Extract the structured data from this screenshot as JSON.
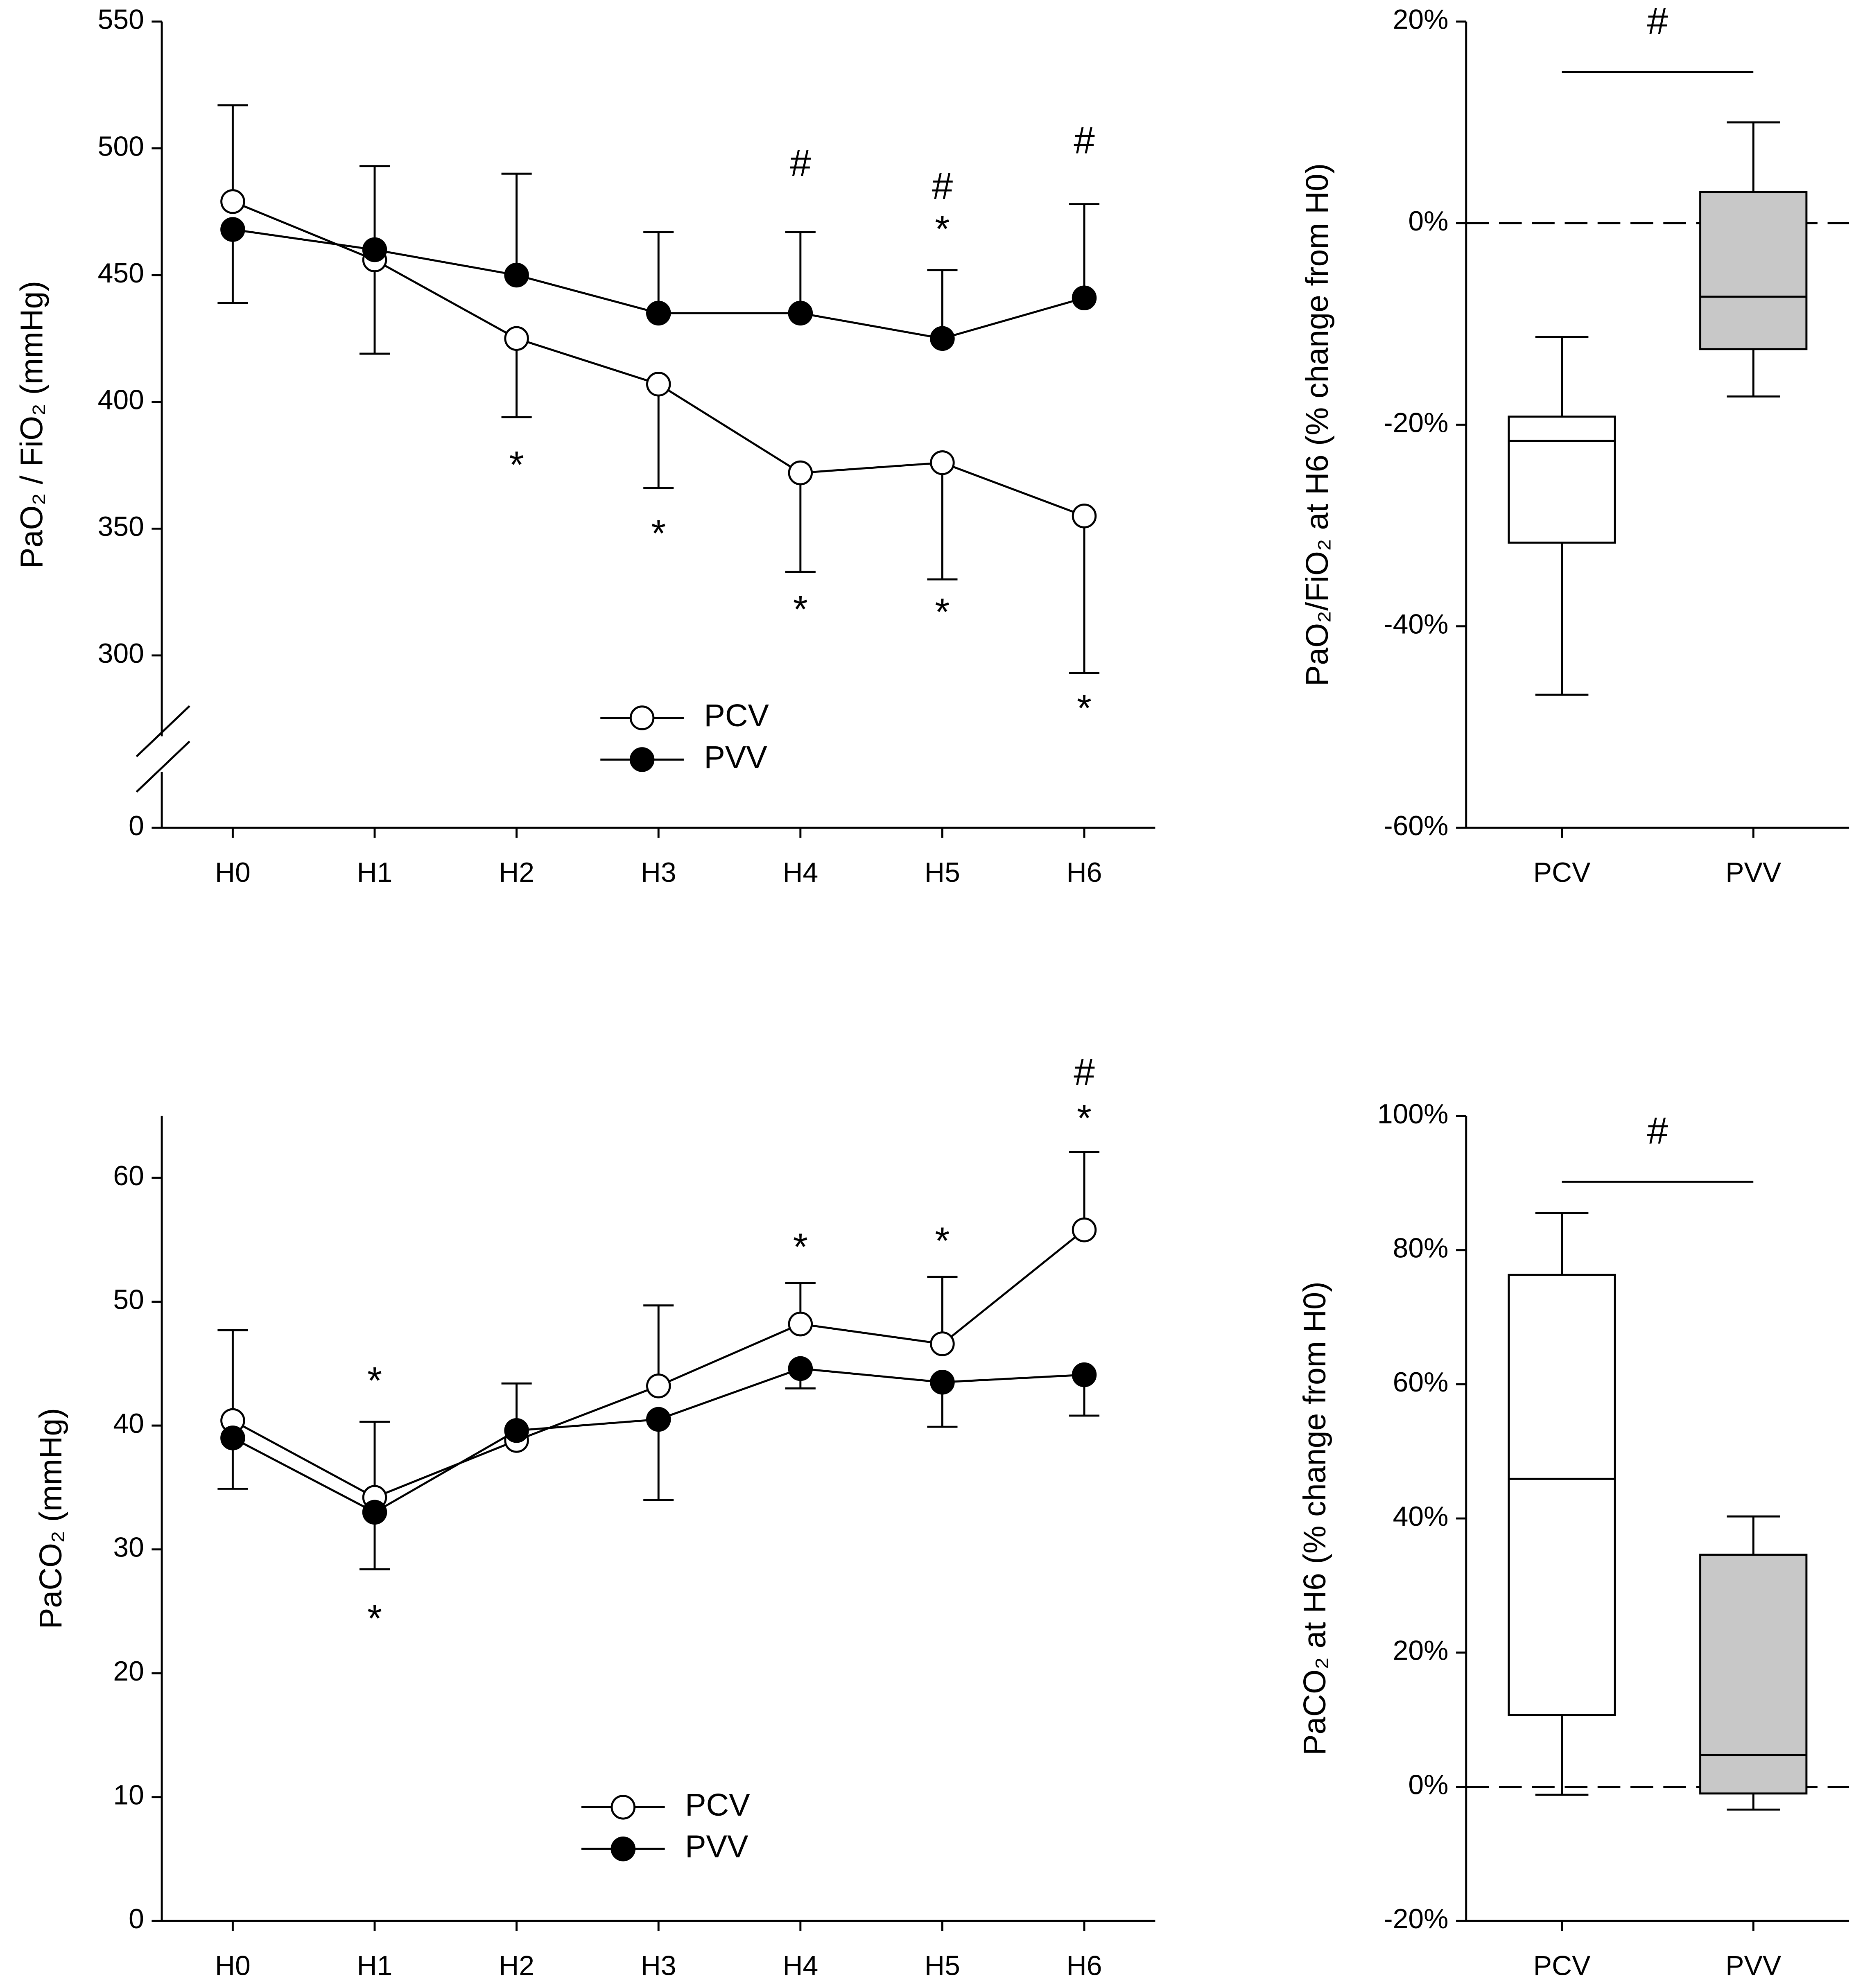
{
  "chart_data": [
    {
      "type": "line",
      "ylabel": "PaO₂ / FiO₂ (mmHg)",
      "categories": [
        "H0",
        "H1",
        "H2",
        "H3",
        "H4",
        "H5",
        "H6"
      ],
      "ylim": [
        232,
        550
      ],
      "yticks": [
        0,
        300,
        350,
        400,
        450,
        500,
        550
      ],
      "axis_break": true,
      "series": [
        {
          "name": "PCV",
          "color": "#000000",
          "fill": "#ffffff",
          "values": [
            479,
            456,
            425,
            407,
            372,
            376,
            355
          ],
          "errors": [
            38,
            37,
            31,
            41,
            39,
            46,
            62
          ],
          "error_side": [
            "up",
            "down",
            "down",
            "down",
            "down",
            "down",
            "down"
          ]
        },
        {
          "name": "PVV",
          "color": "#000000",
          "fill": "#000000",
          "values": [
            468,
            460,
            450,
            435,
            435,
            425,
            441
          ],
          "errors": [
            29,
            33,
            40,
            32,
            32,
            27,
            37
          ],
          "error_side": [
            "down",
            "up",
            "up",
            "up",
            "up",
            "up",
            "up"
          ]
        }
      ],
      "annotations": [
        {
          "text": "*",
          "x": "H2",
          "y": 377
        },
        {
          "text": "*",
          "x": "H3",
          "y": 350
        },
        {
          "text": "*",
          "x": "H4",
          "y": 320
        },
        {
          "text": "*",
          "x": "H5",
          "y": 319
        },
        {
          "text": "*",
          "x": "H6",
          "y": 281
        },
        {
          "text": "#",
          "x": "H4",
          "y": 493
        },
        {
          "text": "#",
          "x": "H5",
          "y": 484
        },
        {
          "text": "*",
          "x": "H5",
          "y": 470
        },
        {
          "text": "#",
          "x": "H6",
          "y": 502
        }
      ]
    },
    {
      "type": "box",
      "ylabel": "PaO₂/FiO₂ at H6 (% change from H0)",
      "categories": [
        "PCV",
        "PVV"
      ],
      "ylim": [
        -60,
        20
      ],
      "yticks": [
        {
          "value": -60,
          "label": "-60%"
        },
        {
          "value": -40,
          "label": "-40%"
        },
        {
          "value": -20,
          "label": "-20%"
        },
        {
          "value": 0,
          "label": "0%"
        },
        {
          "value": 20,
          "label": "20%"
        }
      ],
      "reference_line": 0,
      "boxes": [
        {
          "min": -46.8,
          "q1": -31.7,
          "median": -21.6,
          "q3": -19.2,
          "max": -11.3,
          "fill": "#ffffff"
        },
        {
          "min": -17.2,
          "q1": -12.5,
          "median": -7.3,
          "q3": 3.1,
          "max": 10.0,
          "fill": "#c8c8c8"
        }
      ],
      "annotations": [
        {
          "text": "#",
          "x": [
            "PCV",
            "PVV"
          ],
          "y": 15
        }
      ]
    },
    {
      "type": "line",
      "ylabel": "PaCO₂ (mmHg)",
      "categories": [
        "H0",
        "H1",
        "H2",
        "H3",
        "H4",
        "H5",
        "H6"
      ],
      "ylim": [
        0,
        65
      ],
      "yticks": [
        0,
        10,
        20,
        30,
        40,
        50,
        60
      ],
      "series": [
        {
          "name": "PCV",
          "color": "#000000",
          "fill": "#ffffff",
          "values": [
            40.4,
            34.2,
            38.8,
            43.2,
            48.2,
            46.6,
            55.8
          ],
          "errors": [
            7.3,
            6.1,
            null,
            6.5,
            3.3,
            5.4,
            6.3
          ],
          "error_side": [
            "up",
            "up",
            "up",
            "up",
            "up",
            "up",
            "up"
          ]
        },
        {
          "name": "PVV",
          "color": "#000000",
          "fill": "#000000",
          "values": [
            39.0,
            33.0,
            39.6,
            40.5,
            44.6,
            43.5,
            44.1
          ],
          "errors": [
            4.1,
            4.6,
            3.8,
            6.5,
            1.6,
            3.6,
            3.3
          ],
          "error_side": [
            "down",
            "down",
            "up",
            "down",
            "down",
            "down",
            "down"
          ]
        }
      ],
      "annotations": [
        {
          "text": "*",
          "x": "H1",
          "y": 44.0
        },
        {
          "text": "*",
          "x": "H1",
          "y": 24.8
        },
        {
          "text": "*",
          "x": "H4",
          "y": 54.8
        },
        {
          "text": "*",
          "x": "H5",
          "y": 55.3
        },
        {
          "text": "*",
          "x": "H6",
          "y": 65.2
        },
        {
          "text": "#",
          "x": "H6",
          "y": 68.3
        }
      ]
    },
    {
      "type": "box",
      "ylabel": "PaCO₂ at H6 (% change from H0)",
      "categories": [
        "PCV",
        "PVV"
      ],
      "ylim": [
        -20,
        100
      ],
      "yticks": [
        {
          "value": -20,
          "label": "-20%"
        },
        {
          "value": 0,
          "label": "0%"
        },
        {
          "value": 20,
          "label": "20%"
        },
        {
          "value": 40,
          "label": "40%"
        },
        {
          "value": 60,
          "label": "60%"
        },
        {
          "value": 80,
          "label": "80%"
        },
        {
          "value": 100,
          "label": "100%"
        }
      ],
      "reference_line": 0,
      "boxes": [
        {
          "min": -1.2,
          "q1": 10.7,
          "median": 45.9,
          "q3": 76.3,
          "max": 85.5,
          "fill": "#ffffff"
        },
        {
          "min": -3.4,
          "q1": -1.0,
          "median": 4.7,
          "q3": 34.6,
          "max": 40.3,
          "fill": "#c8c8c8"
        }
      ],
      "annotations": [
        {
          "text": "#",
          "x": [
            "PCV",
            "PVV"
          ],
          "y": 90.2
        }
      ]
    }
  ]
}
